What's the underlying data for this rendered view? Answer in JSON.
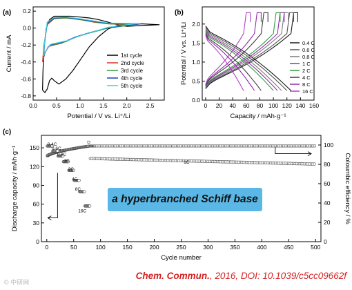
{
  "chart_data": [
    {
      "panel": "(a)",
      "type": "line",
      "xlabel": "Potential / V vs. Li⁺/Li",
      "ylabel": "Current / mA",
      "xlim": [
        0,
        2.8
      ],
      "ylim": [
        -0.85,
        0.25
      ],
      "xticks": [
        "0.0",
        "0.5",
        "1.0",
        "1.5",
        "2.0",
        "2.5"
      ],
      "yticks": [
        "0.2",
        "0.0",
        "-0.2",
        "-0.4",
        "-0.6",
        "-0.8"
      ],
      "legend_position": "lower-right",
      "series": [
        {
          "name": "1st cycle",
          "color": "#000000",
          "points": [
            [
              0.2,
              -0.73
            ],
            [
              0.25,
              -0.76
            ],
            [
              0.3,
              -0.72
            ],
            [
              0.35,
              -0.62
            ],
            [
              0.4,
              -0.59
            ],
            [
              0.45,
              -0.62
            ],
            [
              0.55,
              -0.66
            ],
            [
              0.7,
              -0.6
            ],
            [
              0.85,
              -0.5
            ],
            [
              1.0,
              -0.38
            ],
            [
              1.2,
              -0.22
            ],
            [
              1.4,
              -0.1
            ],
            [
              1.6,
              -0.01
            ],
            [
              1.8,
              0.03
            ],
            [
              2.0,
              0.04
            ],
            [
              2.3,
              0.05
            ],
            [
              2.7,
              0.04
            ],
            [
              2.3,
              0.03
            ],
            [
              2.0,
              0.02
            ],
            [
              1.8,
              0.04
            ],
            [
              1.6,
              0.07
            ],
            [
              1.4,
              0.1
            ],
            [
              1.2,
              0.12
            ],
            [
              1.0,
              0.13
            ],
            [
              0.8,
              0.14
            ],
            [
              0.6,
              0.14
            ],
            [
              0.45,
              0.14
            ],
            [
              0.35,
              0.1
            ],
            [
              0.28,
              0.0
            ],
            [
              0.24,
              -0.2
            ],
            [
              0.21,
              -0.5
            ],
            [
              0.2,
              -0.73
            ]
          ]
        },
        {
          "name": "2nd cycle",
          "color": "#e03030",
          "points": [
            [
              0.2,
              -0.4
            ],
            [
              0.25,
              -0.3
            ],
            [
              0.32,
              -0.22
            ],
            [
              0.45,
              -0.2
            ],
            [
              0.6,
              -0.18
            ],
            [
              0.8,
              -0.13
            ],
            [
              1.0,
              -0.09
            ],
            [
              1.3,
              -0.04
            ],
            [
              1.6,
              0.0
            ],
            [
              2.0,
              0.03
            ],
            [
              2.3,
              0.05
            ],
            [
              2.0,
              0.04
            ],
            [
              1.6,
              0.05
            ],
            [
              1.3,
              0.07
            ],
            [
              1.0,
              0.1
            ],
            [
              0.7,
              0.12
            ],
            [
              0.45,
              0.11
            ],
            [
              0.3,
              0.04
            ],
            [
              0.23,
              -0.2
            ],
            [
              0.2,
              -0.4
            ]
          ]
        },
        {
          "name": "3rd cycle",
          "color": "#2f9e3a",
          "points": [
            [
              0.21,
              -0.36
            ],
            [
              0.27,
              -0.27
            ],
            [
              0.35,
              -0.21
            ],
            [
              0.5,
              -0.19
            ],
            [
              0.7,
              -0.16
            ],
            [
              0.9,
              -0.11
            ],
            [
              1.2,
              -0.06
            ],
            [
              1.6,
              0.0
            ],
            [
              2.0,
              0.03
            ],
            [
              2.3,
              0.05
            ],
            [
              2.0,
              0.045
            ],
            [
              1.6,
              0.05
            ],
            [
              1.3,
              0.075
            ],
            [
              1.0,
              0.1
            ],
            [
              0.7,
              0.12
            ],
            [
              0.45,
              0.115
            ],
            [
              0.3,
              0.05
            ],
            [
              0.24,
              -0.18
            ],
            [
              0.21,
              -0.36
            ]
          ]
        },
        {
          "name": "4th cycle",
          "color": "#1a3db8",
          "points": [
            [
              0.22,
              -0.34
            ],
            [
              0.28,
              -0.26
            ],
            [
              0.36,
              -0.2
            ],
            [
              0.5,
              -0.18
            ],
            [
              0.7,
              -0.155
            ],
            [
              0.9,
              -0.105
            ],
            [
              1.2,
              -0.055
            ],
            [
              1.6,
              0.005
            ],
            [
              2.0,
              0.035
            ],
            [
              2.3,
              0.05
            ],
            [
              2.0,
              0.05
            ],
            [
              1.6,
              0.055
            ],
            [
              1.3,
              0.08
            ],
            [
              1.0,
              0.105
            ],
            [
              0.7,
              0.125
            ],
            [
              0.45,
              0.12
            ],
            [
              0.3,
              0.06
            ],
            [
              0.25,
              -0.15
            ],
            [
              0.22,
              -0.34
            ]
          ]
        },
        {
          "name": "5th cycle",
          "color": "#3ed0e0",
          "points": [
            [
              0.22,
              -0.33
            ],
            [
              0.29,
              -0.25
            ],
            [
              0.38,
              -0.19
            ],
            [
              0.55,
              -0.17
            ],
            [
              0.75,
              -0.145
            ],
            [
              0.95,
              -0.1
            ],
            [
              1.25,
              -0.05
            ],
            [
              1.6,
              0.01
            ],
            [
              2.0,
              0.04
            ],
            [
              2.3,
              0.055
            ],
            [
              2.0,
              0.055
            ],
            [
              1.6,
              0.06
            ],
            [
              1.3,
              0.085
            ],
            [
              1.0,
              0.11
            ],
            [
              0.7,
              0.13
            ],
            [
              0.45,
              0.125
            ],
            [
              0.3,
              0.07
            ],
            [
              0.25,
              -0.13
            ],
            [
              0.22,
              -0.33
            ]
          ]
        }
      ]
    },
    {
      "panel": "(b)",
      "type": "line",
      "xlabel": "Capacity / mAh·g⁻¹",
      "ylabel": "Potential / V vs. Li⁺/Li",
      "xlim": [
        -5,
        160
      ],
      "ylim": [
        0,
        2.45
      ],
      "xticks": [
        "0",
        "20",
        "40",
        "60",
        "80",
        "100",
        "120",
        "140",
        "160"
      ],
      "yticks": [
        "0.0",
        "0.5",
        "1.0",
        "1.5",
        "2.0"
      ],
      "legend_position": "right",
      "series": [
        {
          "name": "0.4 C",
          "color": "#1a1a1a",
          "cap": 126
        },
        {
          "name": "0.6 C",
          "color": "#555555",
          "cap": 120
        },
        {
          "name": "0.8 C",
          "color": "#7a7a7a",
          "cap": 112
        },
        {
          "name": "1 C",
          "color": "#9a2ab0",
          "cap": 106
        },
        {
          "name": "2 C",
          "color": "#2f9e3a",
          "cap": 100
        },
        {
          "name": "4 C",
          "color": "#3a3a3a",
          "cap": 82
        },
        {
          "name": "8 C",
          "color": "#8e2aa8",
          "cap": 72
        },
        {
          "name": "16 C",
          "color": "#b040c0",
          "cap": 56
        }
      ]
    },
    {
      "panel": "(c)",
      "type": "scatter",
      "xlabel": "Cycle number",
      "ylabel": "Discharge capacity / mAh·g⁻¹",
      "y2label": "Coloumbic efficiency / %",
      "xlim": [
        -10,
        510
      ],
      "ylim": [
        0,
        170
      ],
      "y2lim": [
        0,
        110
      ],
      "xticks": [
        "0",
        "50",
        "100",
        "150",
        "200",
        "250",
        "300",
        "350",
        "400",
        "450",
        "500"
      ],
      "yticks": [
        "0",
        "30",
        "60",
        "90",
        "120",
        "150"
      ],
      "y2ticks": [
        "0",
        "20",
        "40",
        "60",
        "80",
        "100"
      ],
      "rate_labels": [
        "0.4C",
        "0.6C",
        "0.8C",
        "1C",
        "2C",
        "4C",
        "8C",
        "16C",
        "1C"
      ],
      "discharge_capacity_steps": [
        {
          "rate": "0.4C",
          "from": 1,
          "to": 10,
          "value": 153
        },
        {
          "rate": "0.6C",
          "from": 11,
          "to": 20,
          "value": 145
        },
        {
          "rate": "0.8C",
          "from": 21,
          "to": 30,
          "value": 137
        },
        {
          "rate": "1C",
          "from": 31,
          "to": 40,
          "value": 128
        },
        {
          "rate": "2C",
          "from": 41,
          "to": 50,
          "value": 114
        },
        {
          "rate": "4C",
          "from": 51,
          "to": 60,
          "value": 98
        },
        {
          "rate": "8C",
          "from": 61,
          "to": 70,
          "value": 80
        },
        {
          "rate": "16C",
          "from": 71,
          "to": 80,
          "value": 57
        },
        {
          "rate": "1C",
          "from": 81,
          "to": 500,
          "value_start": 133,
          "value_end": 124
        }
      ],
      "coulombic_efficiency": {
        "start": 88,
        "ramp_to_cycle": 80,
        "steady": 99
      }
    }
  ],
  "banner_text": "a hyperbranched Schiff base",
  "citation": {
    "journal": "Chem. Commun.",
    "rest": ", 2016, DOI: 10.1039/c5cc09662f"
  },
  "watermark": "© 中研网"
}
